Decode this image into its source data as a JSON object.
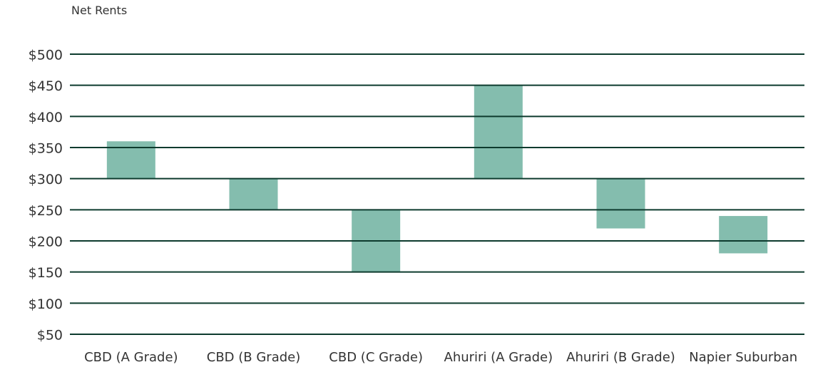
{
  "chart_data": {
    "type": "range_bar",
    "title": "Net Rents",
    "categories": [
      "CBD (A Grade)",
      "CBD (B Grade)",
      "CBD (C Grade)",
      "Ahuriri (A Grade)",
      "Ahuriri (B Grade)",
      "Napier Suburban"
    ],
    "values": [
      [
        300,
        360
      ],
      [
        250,
        300
      ],
      [
        150,
        250
      ],
      [
        300,
        450
      ],
      [
        220,
        300
      ],
      [
        180,
        240
      ]
    ],
    "color": "#84bdae",
    "grid_color": "#0d3b2e",
    "ylim": [
      50,
      500
    ],
    "yticks": [
      {
        "value": 50,
        "label": "$50"
      },
      {
        "value": 100,
        "label": "$100"
      },
      {
        "value": 150,
        "label": "$150"
      },
      {
        "value": 200,
        "label": "$200"
      },
      {
        "value": 250,
        "label": "$250"
      },
      {
        "value": 300,
        "label": "$300"
      },
      {
        "value": 350,
        "label": "$350"
      },
      {
        "value": 400,
        "label": "$400"
      },
      {
        "value": 450,
        "label": "$450"
      },
      {
        "value": 500,
        "label": "$500"
      }
    ],
    "grid": true
  }
}
